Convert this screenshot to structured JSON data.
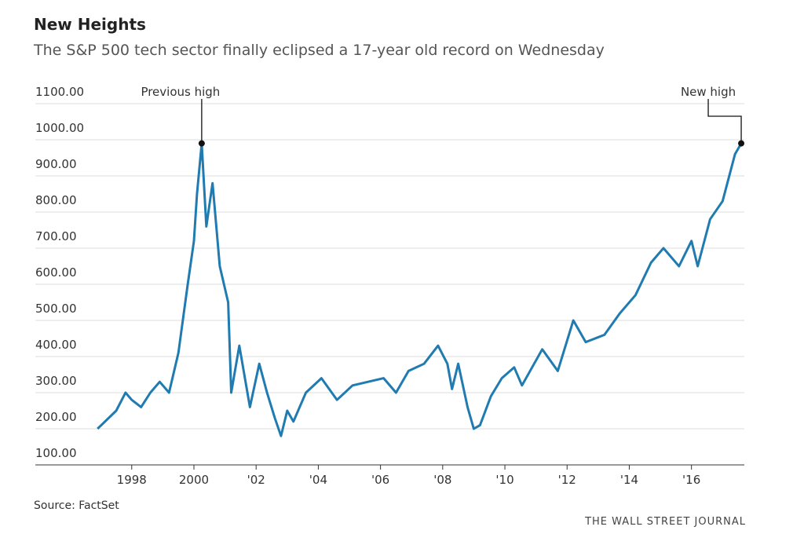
{
  "chart_data": {
    "type": "line",
    "title": "New Heights",
    "subtitle": "The S&P 500 tech sector finally eclipsed a 17-year old record on Wednesday",
    "source": "Source: FactSet",
    "credit": "THE WALL STREET JOURNAL",
    "series": [
      {
        "name": "S&P 500 tech sector",
        "color": "#1f7bb0",
        "x": [
          1996.9,
          1997.2,
          1997.5,
          1997.8,
          1998.0,
          1998.3,
          1998.6,
          1998.9,
          1999.2,
          1999.5,
          1999.8,
          2000.0,
          2000.1,
          2000.25,
          2000.4,
          2000.6,
          2000.83,
          2001.1,
          2001.2,
          2001.46,
          2001.8,
          2002.1,
          2002.35,
          2002.6,
          2002.8,
          2003.0,
          2003.2,
          2003.6,
          2004.1,
          2004.6,
          2005.1,
          2005.6,
          2006.1,
          2006.5,
          2006.9,
          2007.4,
          2007.85,
          2008.15,
          2008.3,
          2008.5,
          2008.8,
          2009.0,
          2009.2,
          2009.55,
          2009.9,
          2010.3,
          2010.55,
          2011.2,
          2011.7,
          2012.2,
          2012.6,
          2013.2,
          2013.7,
          2014.2,
          2014.7,
          2015.1,
          2015.6,
          2016.0,
          2016.2,
          2016.6,
          2017.0,
          2017.4,
          2017.6
        ],
        "values": [
          200,
          225,
          250,
          300,
          280,
          260,
          300,
          330,
          300,
          410,
          600,
          720,
          850,
          990,
          760,
          880,
          650,
          550,
          300,
          430,
          260,
          380,
          300,
          230,
          180,
          250,
          220,
          300,
          340,
          280,
          320,
          330,
          340,
          300,
          360,
          380,
          430,
          380,
          310,
          380,
          260,
          200,
          210,
          290,
          340,
          370,
          320,
          420,
          360,
          500,
          440,
          460,
          520,
          570,
          660,
          700,
          650,
          720,
          650,
          780,
          830,
          960,
          990
        ]
      }
    ],
    "annotations": [
      {
        "text": "Previous high",
        "x": 2000.25,
        "y": 990
      },
      {
        "text": "New high",
        "x": 2017.6,
        "y": 990
      }
    ],
    "xlim": [
      1994.9,
      2017.7
    ],
    "xticks": [
      1998,
      2000,
      {
        "value": 2002,
        "label": "'02"
      },
      {
        "value": 2004,
        "label": "'04"
      },
      {
        "value": 2006,
        "label": "'06"
      },
      {
        "value": 2008,
        "label": "'08"
      },
      {
        "value": 2010,
        "label": "'10"
      },
      {
        "value": 2012,
        "label": "'12"
      },
      {
        "value": 2014,
        "label": "'14"
      },
      {
        "value": 2016,
        "label": "'16"
      }
    ],
    "ylim": [
      100,
      1100
    ],
    "yticks": [
      {
        "value": 100,
        "label": "100.00"
      },
      {
        "value": 200,
        "label": "200.00"
      },
      {
        "value": 300,
        "label": "300.00"
      },
      {
        "value": 400,
        "label": "400.00"
      },
      {
        "value": 500,
        "label": "500.00"
      },
      {
        "value": 600,
        "label": "600.00"
      },
      {
        "value": 700,
        "label": "700.00"
      },
      {
        "value": 800,
        "label": "800.00"
      },
      {
        "value": 900,
        "label": "900.00"
      },
      {
        "value": 1000,
        "label": "1000.00"
      },
      {
        "value": 1100,
        "label": "1100.00"
      }
    ],
    "grid": true
  }
}
